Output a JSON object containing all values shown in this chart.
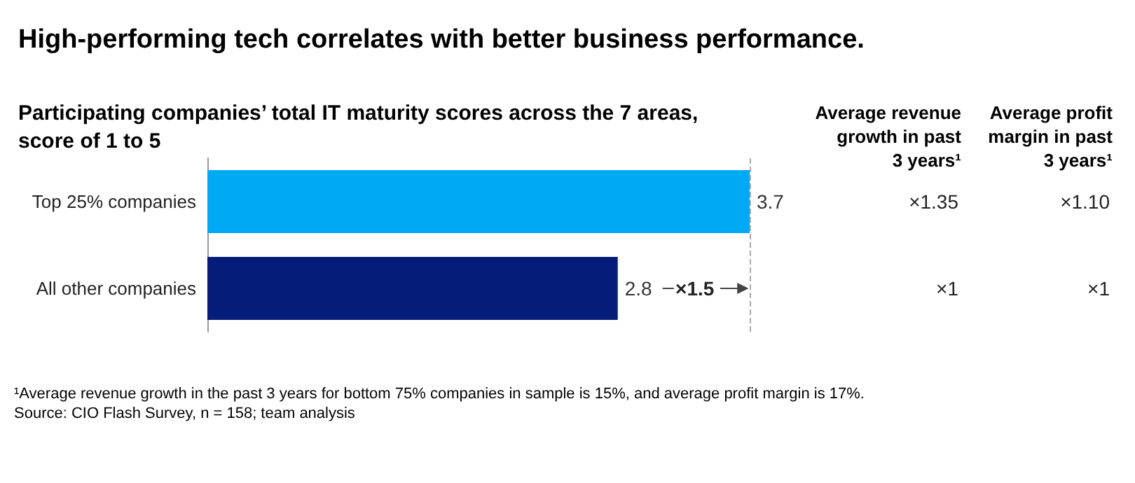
{
  "chart_data": {
    "type": "bar",
    "orientation": "horizontal",
    "title": "High-performing tech correlates with better business performance.",
    "subtitle": "Participating companies’ total IT maturity scores across the 7 areas, score of 1 to 5",
    "categories": [
      "Top 25% companies",
      "All other companies"
    ],
    "values": [
      3.7,
      2.8
    ],
    "colors": [
      "#00a9f4",
      "#051c79"
    ],
    "data_labels": true,
    "xlim": [
      0,
      3.7
    ],
    "grid": false,
    "ref_lines": [
      {
        "axis": "x",
        "value": 3.7,
        "color": "#aaaaaa",
        "line_style": "dashed"
      }
    ],
    "annotations": [
      "Average revenue",
      "growth in past",
      "3 years¹",
      "Average profit",
      "margin in past",
      "3 years¹",
      "×1.35",
      "×1.10",
      "×1",
      "×1",
      "×1.5",
      "¹Average revenue growth in the past 3 years for bottom 75% companies in sample is 15%, and average profit margin is 17%.",
      "Source: CIO Flash Survey, n = 158; team analysis"
    ]
  }
}
